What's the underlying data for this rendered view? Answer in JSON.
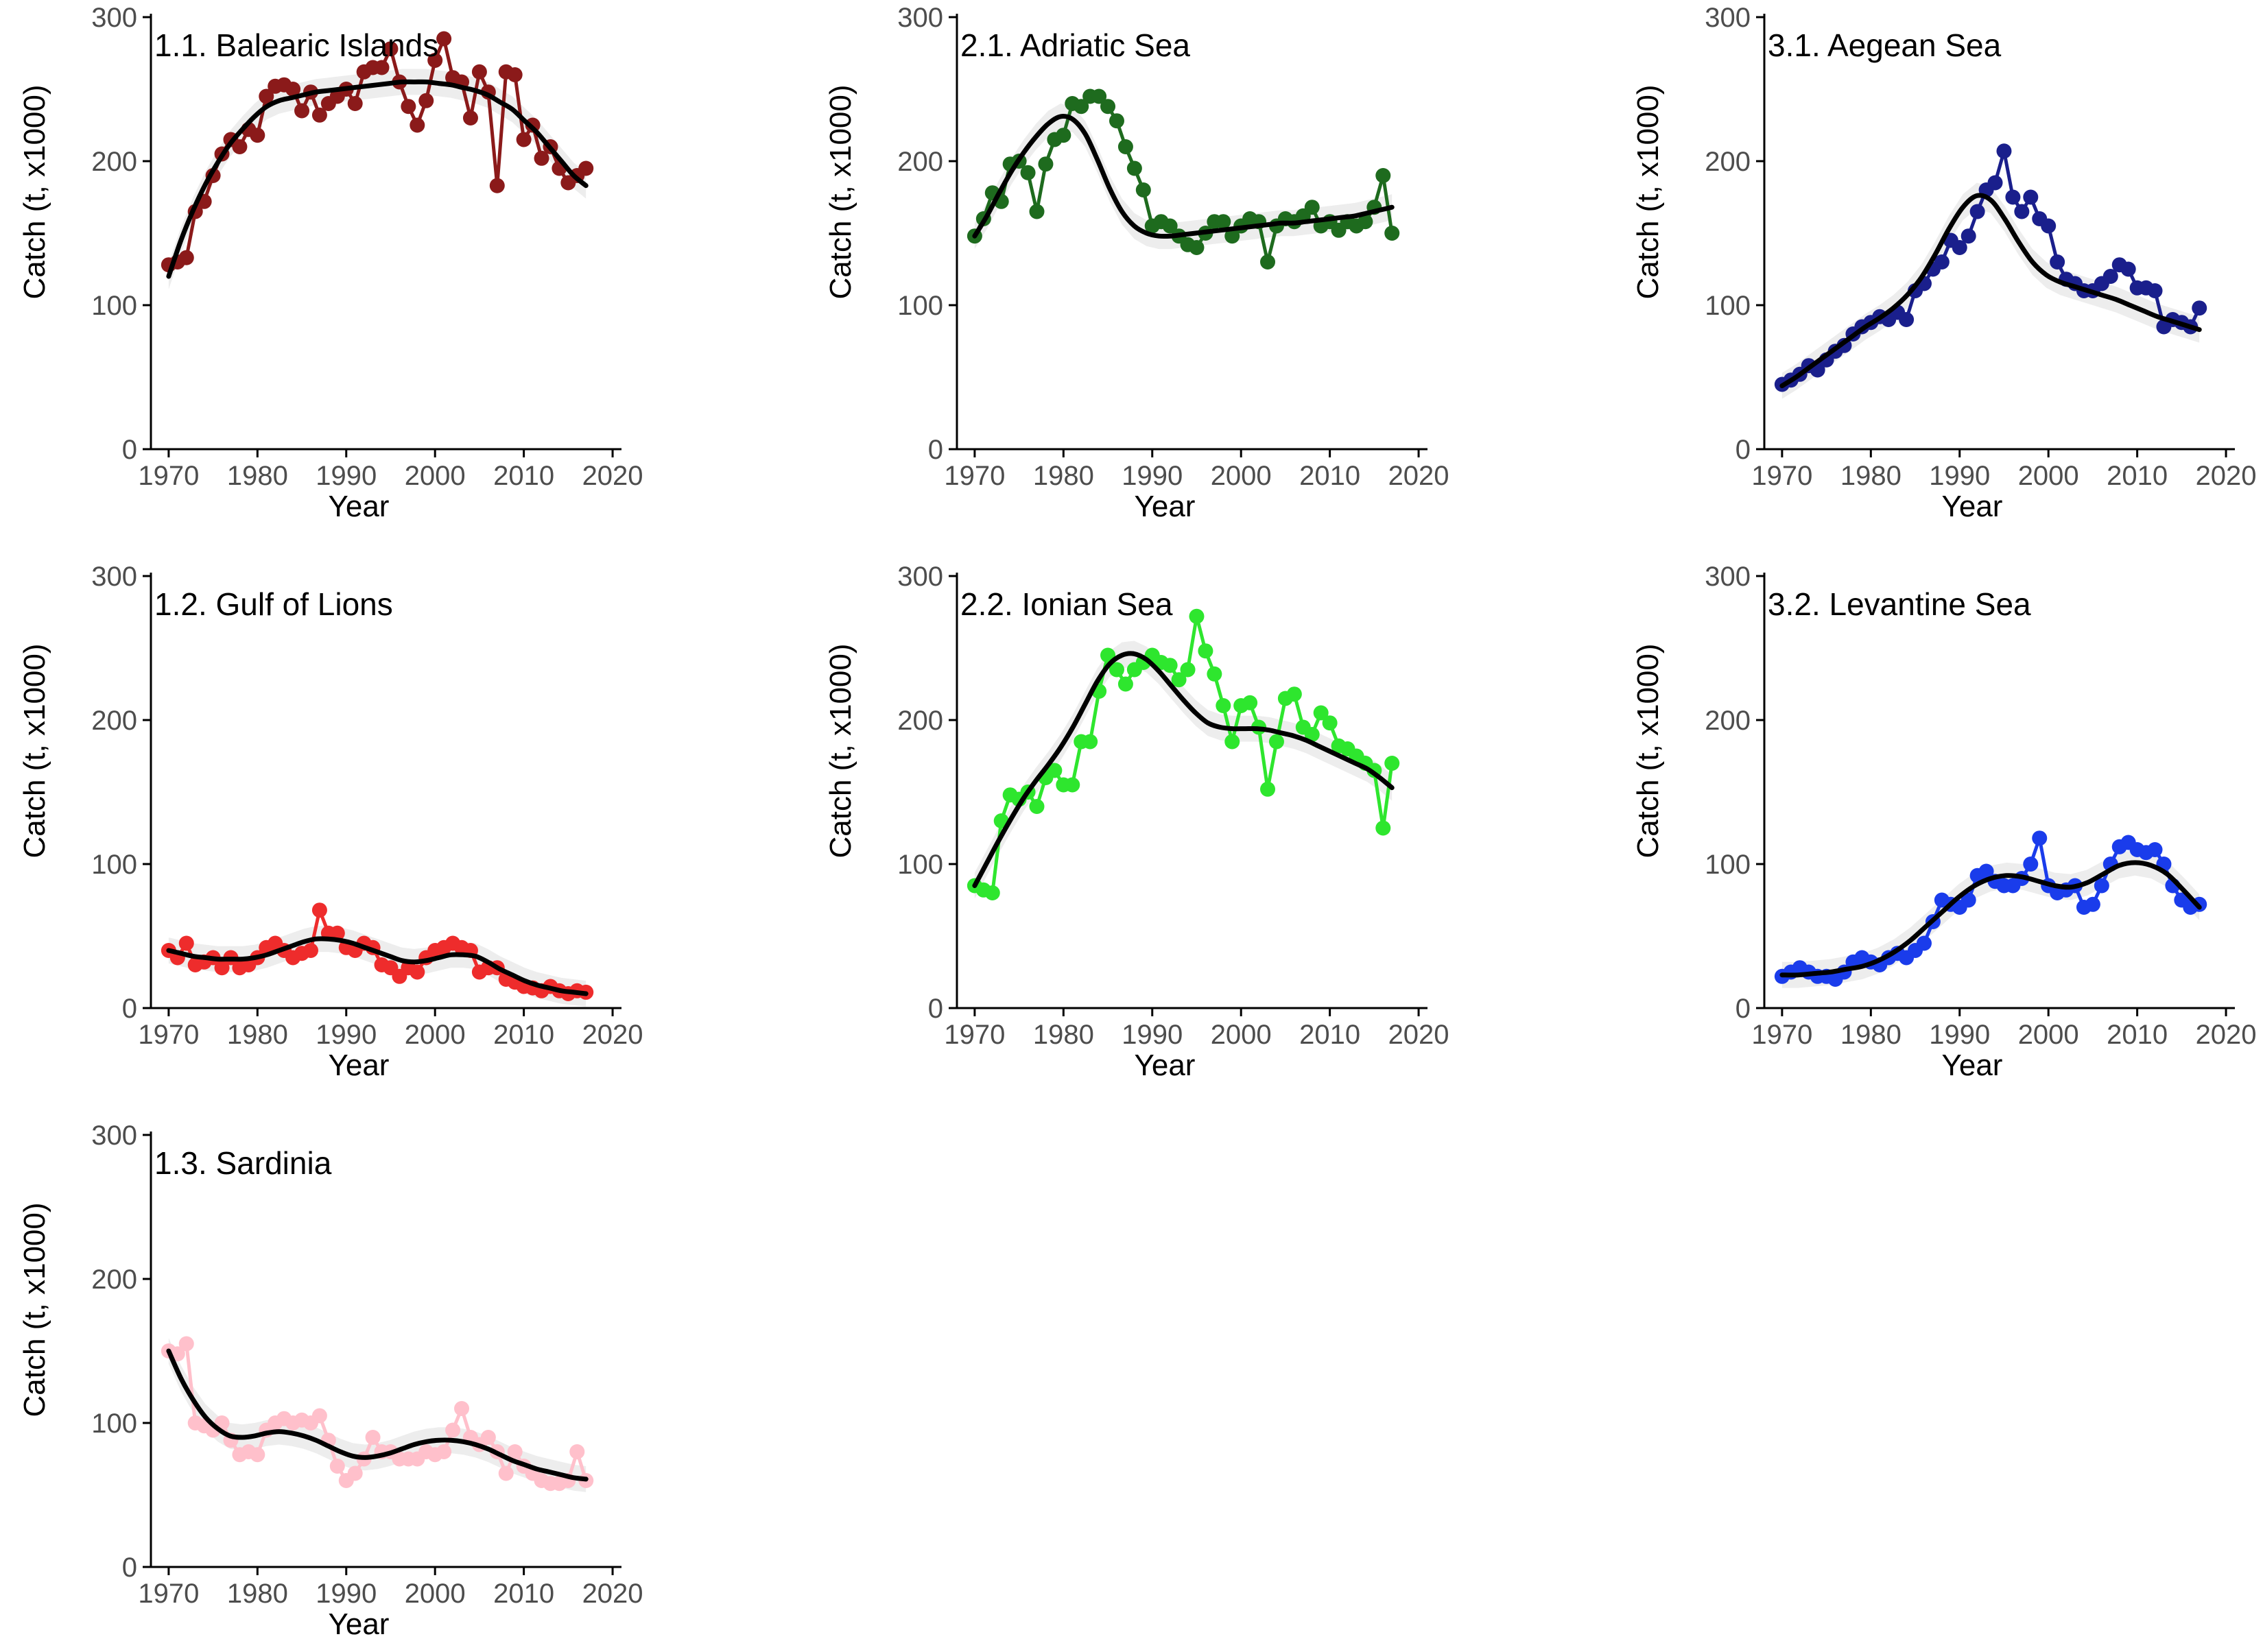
{
  "figure": {
    "x_axis_label": "Year",
    "y_axis_label": "Catch (t, x1000)"
  },
  "chart_data": [
    {
      "type": "line",
      "title": "1.1. Balearic Islands",
      "color": "#8B1A1A",
      "xlabel": "Year",
      "ylabel": "Catch (t, x1000)",
      "xlim": [
        1968,
        2021
      ],
      "ylim": [
        0,
        300
      ],
      "xticks": [
        1970,
        1980,
        1990,
        2000,
        2010,
        2020
      ],
      "yticks": [
        0,
        100,
        200,
        300
      ],
      "x": [
        1970,
        1971,
        1972,
        1973,
        1974,
        1975,
        1976,
        1977,
        1978,
        1979,
        1980,
        1981,
        1982,
        1983,
        1984,
        1985,
        1986,
        1987,
        1988,
        1989,
        1990,
        1991,
        1992,
        1993,
        1994,
        1995,
        1996,
        1997,
        1998,
        1999,
        2000,
        2001,
        2002,
        2003,
        2004,
        2005,
        2006,
        2007,
        2008,
        2009,
        2010,
        2011,
        2012,
        2013,
        2014,
        2015,
        2016,
        2017
      ],
      "y": [
        128,
        130,
        133,
        165,
        172,
        190,
        205,
        215,
        210,
        222,
        218,
        245,
        252,
        253,
        250,
        235,
        248,
        232,
        240,
        245,
        250,
        240,
        262,
        265,
        265,
        278,
        255,
        238,
        225,
        242,
        270,
        285,
        258,
        255,
        230,
        262,
        248,
        183,
        262,
        260,
        215,
        225,
        202,
        210,
        195,
        185,
        190,
        195
      ],
      "smooth": [
        120,
        145,
        166,
        184,
        199,
        212,
        222,
        231,
        238,
        242,
        244,
        246,
        248,
        249,
        250,
        251,
        252,
        253,
        254,
        255,
        255,
        255,
        254,
        253,
        251,
        249,
        246,
        241,
        236,
        228,
        220,
        210,
        200,
        190,
        183
      ]
    },
    {
      "type": "line",
      "title": "1.2. Gulf of Lions",
      "color": "#EE2C2C",
      "xlabel": "Year",
      "ylabel": "Catch (t, x1000)",
      "xlim": [
        1968,
        2021
      ],
      "ylim": [
        0,
        300
      ],
      "xticks": [
        1970,
        1980,
        1990,
        2000,
        2010,
        2020
      ],
      "yticks": [
        0,
        100,
        200,
        300
      ],
      "x": [
        1970,
        1971,
        1972,
        1973,
        1974,
        1975,
        1976,
        1977,
        1978,
        1979,
        1980,
        1981,
        1982,
        1983,
        1984,
        1985,
        1986,
        1987,
        1988,
        1989,
        1990,
        1991,
        1992,
        1993,
        1994,
        1995,
        1996,
        1997,
        1998,
        1999,
        2000,
        2001,
        2002,
        2003,
        2004,
        2005,
        2006,
        2007,
        2008,
        2009,
        2010,
        2011,
        2012,
        2013,
        2014,
        2015,
        2016,
        2017
      ],
      "y": [
        40,
        35,
        45,
        30,
        32,
        35,
        28,
        35,
        28,
        30,
        35,
        42,
        45,
        40,
        35,
        38,
        40,
        68,
        52,
        52,
        42,
        40,
        45,
        42,
        30,
        28,
        22,
        28,
        25,
        35,
        40,
        42,
        45,
        42,
        40,
        25,
        28,
        28,
        20,
        18,
        15,
        14,
        12,
        15,
        12,
        10,
        12,
        11
      ],
      "smooth": [
        40,
        38,
        36,
        35,
        34,
        34,
        34,
        35,
        37,
        40,
        43,
        46,
        48,
        48,
        47,
        45,
        42,
        39,
        36,
        33,
        32,
        33,
        35,
        37,
        37,
        36,
        32,
        27,
        23,
        19,
        16,
        14,
        12,
        11,
        10
      ]
    },
    {
      "type": "line",
      "title": "1.3. Sardinia",
      "color": "#FFC0CB",
      "xlabel": "Year",
      "ylabel": "Catch (t, x1000)",
      "xlim": [
        1968,
        2021
      ],
      "ylim": [
        0,
        300
      ],
      "xticks": [
        1970,
        1980,
        1990,
        2000,
        2010,
        2020
      ],
      "yticks": [
        0,
        100,
        200,
        300
      ],
      "x": [
        1970,
        1971,
        1972,
        1973,
        1974,
        1975,
        1976,
        1977,
        1978,
        1979,
        1980,
        1981,
        1982,
        1983,
        1984,
        1985,
        1986,
        1987,
        1988,
        1989,
        1990,
        1991,
        1992,
        1993,
        1994,
        1995,
        1996,
        1997,
        1998,
        1999,
        2000,
        2001,
        2002,
        2003,
        2004,
        2005,
        2006,
        2007,
        2008,
        2009,
        2010,
        2011,
        2012,
        2013,
        2014,
        2015,
        2016,
        2017
      ],
      "y": [
        150,
        148,
        155,
        100,
        98,
        95,
        100,
        88,
        78,
        80,
        78,
        95,
        100,
        103,
        100,
        102,
        100,
        105,
        88,
        70,
        60,
        65,
        75,
        90,
        80,
        80,
        75,
        75,
        75,
        80,
        78,
        80,
        95,
        110,
        90,
        85,
        90,
        80,
        65,
        80,
        70,
        65,
        60,
        58,
        58,
        60,
        80,
        60
      ],
      "smooth": [
        150,
        131,
        116,
        104,
        96,
        91,
        90,
        91,
        93,
        94,
        93,
        91,
        88,
        84,
        80,
        77,
        76,
        77,
        79,
        82,
        85,
        87,
        88,
        88,
        87,
        85,
        82,
        78,
        74,
        71,
        68,
        66,
        64,
        62,
        61
      ]
    },
    {
      "type": "line",
      "title": "2.1. Adriatic Sea",
      "color": "#1E6B1E",
      "xlabel": "Year",
      "ylabel": "Catch (t, x1000)",
      "xlim": [
        1968,
        2021
      ],
      "ylim": [
        0,
        300
      ],
      "xticks": [
        1970,
        1980,
        1990,
        2000,
        2010,
        2020
      ],
      "yticks": [
        0,
        100,
        200,
        300
      ],
      "x": [
        1970,
        1971,
        1972,
        1973,
        1974,
        1975,
        1976,
        1977,
        1978,
        1979,
        1980,
        1981,
        1982,
        1983,
        1984,
        1985,
        1986,
        1987,
        1988,
        1989,
        1990,
        1991,
        1992,
        1993,
        1994,
        1995,
        1996,
        1997,
        1998,
        1999,
        2000,
        2001,
        2002,
        2003,
        2004,
        2005,
        2006,
        2007,
        2008,
        2009,
        2010,
        2011,
        2012,
        2013,
        2014,
        2015,
        2016,
        2017
      ],
      "y": [
        148,
        160,
        178,
        172,
        198,
        200,
        192,
        165,
        198,
        215,
        218,
        240,
        238,
        245,
        245,
        238,
        228,
        210,
        195,
        180,
        155,
        158,
        155,
        148,
        142,
        140,
        150,
        158,
        158,
        148,
        155,
        160,
        158,
        130,
        155,
        160,
        158,
        162,
        168,
        155,
        158,
        152,
        158,
        155,
        158,
        168,
        190,
        150
      ],
      "smooth": [
        148,
        162,
        178,
        193,
        206,
        217,
        226,
        231,
        229,
        219,
        201,
        181,
        165,
        155,
        150,
        148,
        148,
        149,
        150,
        151,
        152,
        153,
        154,
        155,
        156,
        157,
        157,
        158,
        159,
        160,
        161,
        162,
        164,
        166,
        168
      ]
    },
    {
      "type": "line",
      "title": "2.2. Ionian Sea",
      "color": "#2EE62E",
      "xlabel": "Year",
      "ylabel": "Catch (t, x1000)",
      "xlim": [
        1968,
        2021
      ],
      "ylim": [
        0,
        300
      ],
      "xticks": [
        1970,
        1980,
        1990,
        2000,
        2010,
        2020
      ],
      "yticks": [
        0,
        100,
        200,
        300
      ],
      "x": [
        1970,
        1971,
        1972,
        1973,
        1974,
        1975,
        1976,
        1977,
        1978,
        1979,
        1980,
        1981,
        1982,
        1983,
        1984,
        1985,
        1986,
        1987,
        1988,
        1989,
        1990,
        1991,
        1992,
        1993,
        1994,
        1995,
        1996,
        1997,
        1998,
        1999,
        2000,
        2001,
        2002,
        2003,
        2004,
        2005,
        2006,
        2007,
        2008,
        2009,
        2010,
        2011,
        2012,
        2013,
        2014,
        2015,
        2016,
        2017
      ],
      "y": [
        85,
        82,
        80,
        130,
        148,
        145,
        150,
        140,
        160,
        165,
        155,
        155,
        185,
        185,
        220,
        245,
        235,
        225,
        235,
        240,
        245,
        240,
        238,
        228,
        235,
        272,
        248,
        232,
        210,
        185,
        210,
        212,
        195,
        152,
        185,
        215,
        218,
        195,
        190,
        205,
        198,
        182,
        180,
        175,
        170,
        165,
        125,
        170
      ],
      "smooth": [
        85,
        101,
        117,
        132,
        146,
        158,
        169,
        181,
        195,
        211,
        227,
        239,
        245,
        246,
        242,
        234,
        224,
        214,
        205,
        198,
        195,
        194,
        194,
        194,
        193,
        191,
        189,
        186,
        182,
        178,
        174,
        170,
        166,
        160,
        153
      ]
    },
    {
      "type": "line",
      "title": "3.1. Aegean Sea",
      "color": "#1A1F8C",
      "xlabel": "Year",
      "ylabel": "Catch (t, x1000)",
      "xlim": [
        1968,
        2021
      ],
      "ylim": [
        0,
        300
      ],
      "xticks": [
        1970,
        1980,
        1990,
        2000,
        2010,
        2020
      ],
      "yticks": [
        0,
        100,
        200,
        300
      ],
      "x": [
        1970,
        1971,
        1972,
        1973,
        1974,
        1975,
        1976,
        1977,
        1978,
        1979,
        1980,
        1981,
        1982,
        1983,
        1984,
        1985,
        1986,
        1987,
        1988,
        1989,
        1990,
        1991,
        1992,
        1993,
        1994,
        1995,
        1996,
        1997,
        1998,
        1999,
        2000,
        2001,
        2002,
        2003,
        2004,
        2005,
        2006,
        2007,
        2008,
        2009,
        2010,
        2011,
        2012,
        2013,
        2014,
        2015,
        2016,
        2017
      ],
      "y": [
        45,
        48,
        52,
        58,
        55,
        62,
        68,
        72,
        80,
        85,
        88,
        92,
        90,
        95,
        90,
        110,
        115,
        125,
        130,
        145,
        140,
        148,
        165,
        180,
        185,
        207,
        175,
        165,
        175,
        160,
        155,
        130,
        118,
        115,
        110,
        110,
        115,
        120,
        128,
        125,
        112,
        112,
        110,
        85,
        90,
        88,
        85,
        98
      ],
      "smooth": [
        44,
        50,
        57,
        64,
        71,
        78,
        85,
        91,
        98,
        107,
        119,
        135,
        153,
        168,
        176,
        173,
        160,
        144,
        130,
        121,
        116,
        113,
        110,
        107,
        104,
        100,
        96,
        92,
        89,
        86,
        83
      ]
    },
    {
      "type": "line",
      "title": "3.2. Levantine Sea",
      "color": "#1A3CEB",
      "xlabel": "Year",
      "ylabel": "Catch (t, x1000)",
      "xlim": [
        1968,
        2021
      ],
      "ylim": [
        0,
        300
      ],
      "xticks": [
        1970,
        1980,
        1990,
        2000,
        2010,
        2020
      ],
      "yticks": [
        0,
        100,
        200,
        300
      ],
      "x": [
        1970,
        1971,
        1972,
        1973,
        1974,
        1975,
        1976,
        1977,
        1978,
        1979,
        1980,
        1981,
        1982,
        1983,
        1984,
        1985,
        1986,
        1987,
        1988,
        1989,
        1990,
        1991,
        1992,
        1993,
        1994,
        1995,
        1996,
        1997,
        1998,
        1999,
        2000,
        2001,
        2002,
        2003,
        2004,
        2005,
        2006,
        2007,
        2008,
        2009,
        2010,
        2011,
        2012,
        2013,
        2014,
        2015,
        2016,
        2017
      ],
      "y": [
        22,
        25,
        28,
        25,
        22,
        22,
        20,
        25,
        32,
        35,
        32,
        30,
        35,
        38,
        35,
        40,
        45,
        60,
        75,
        72,
        70,
        75,
        92,
        95,
        88,
        85,
        85,
        90,
        100,
        118,
        85,
        80,
        82,
        85,
        70,
        72,
        85,
        100,
        112,
        115,
        110,
        108,
        110,
        100,
        85,
        75,
        70,
        72
      ],
      "smooth": [
        23,
        23,
        24,
        25,
        27,
        29,
        33,
        39,
        47,
        57,
        67,
        77,
        85,
        90,
        92,
        91,
        88,
        85,
        84,
        87,
        93,
        99,
        101,
        99,
        93,
        82,
        70
      ]
    }
  ]
}
